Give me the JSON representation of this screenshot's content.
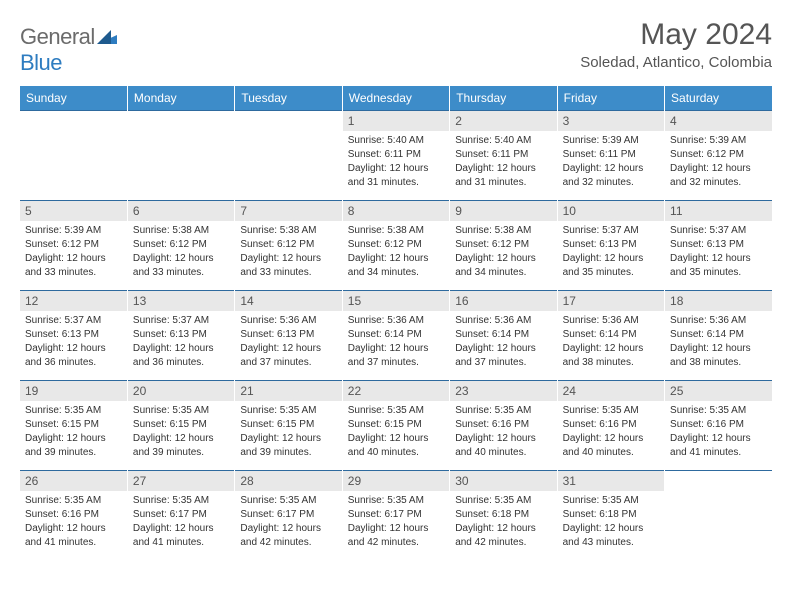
{
  "logo": {
    "gray": "General",
    "blue": "Blue"
  },
  "title": {
    "month": "May 2024",
    "location": "Soledad, Atlantico, Colombia"
  },
  "colors": {
    "header_bg": "#3d8cc9",
    "header_text": "#ffffff",
    "row_border": "#2e6a9e",
    "daynum_bg": "#e8e8e8",
    "text": "#555555",
    "logo_gray": "#6b6b6b",
    "logo_blue": "#2e7cc0"
  },
  "weekdays": [
    "Sunday",
    "Monday",
    "Tuesday",
    "Wednesday",
    "Thursday",
    "Friday",
    "Saturday"
  ],
  "weeks": [
    [
      {
        "n": "",
        "sr": "",
        "ss": "",
        "dl": ""
      },
      {
        "n": "",
        "sr": "",
        "ss": "",
        "dl": ""
      },
      {
        "n": "",
        "sr": "",
        "ss": "",
        "dl": ""
      },
      {
        "n": "1",
        "sr": "5:40 AM",
        "ss": "6:11 PM",
        "dl": "12 hours and 31 minutes."
      },
      {
        "n": "2",
        "sr": "5:40 AM",
        "ss": "6:11 PM",
        "dl": "12 hours and 31 minutes."
      },
      {
        "n": "3",
        "sr": "5:39 AM",
        "ss": "6:11 PM",
        "dl": "12 hours and 32 minutes."
      },
      {
        "n": "4",
        "sr": "5:39 AM",
        "ss": "6:12 PM",
        "dl": "12 hours and 32 minutes."
      }
    ],
    [
      {
        "n": "5",
        "sr": "5:39 AM",
        "ss": "6:12 PM",
        "dl": "12 hours and 33 minutes."
      },
      {
        "n": "6",
        "sr": "5:38 AM",
        "ss": "6:12 PM",
        "dl": "12 hours and 33 minutes."
      },
      {
        "n": "7",
        "sr": "5:38 AM",
        "ss": "6:12 PM",
        "dl": "12 hours and 33 minutes."
      },
      {
        "n": "8",
        "sr": "5:38 AM",
        "ss": "6:12 PM",
        "dl": "12 hours and 34 minutes."
      },
      {
        "n": "9",
        "sr": "5:38 AM",
        "ss": "6:12 PM",
        "dl": "12 hours and 34 minutes."
      },
      {
        "n": "10",
        "sr": "5:37 AM",
        "ss": "6:13 PM",
        "dl": "12 hours and 35 minutes."
      },
      {
        "n": "11",
        "sr": "5:37 AM",
        "ss": "6:13 PM",
        "dl": "12 hours and 35 minutes."
      }
    ],
    [
      {
        "n": "12",
        "sr": "5:37 AM",
        "ss": "6:13 PM",
        "dl": "12 hours and 36 minutes."
      },
      {
        "n": "13",
        "sr": "5:37 AM",
        "ss": "6:13 PM",
        "dl": "12 hours and 36 minutes."
      },
      {
        "n": "14",
        "sr": "5:36 AM",
        "ss": "6:13 PM",
        "dl": "12 hours and 37 minutes."
      },
      {
        "n": "15",
        "sr": "5:36 AM",
        "ss": "6:14 PM",
        "dl": "12 hours and 37 minutes."
      },
      {
        "n": "16",
        "sr": "5:36 AM",
        "ss": "6:14 PM",
        "dl": "12 hours and 37 minutes."
      },
      {
        "n": "17",
        "sr": "5:36 AM",
        "ss": "6:14 PM",
        "dl": "12 hours and 38 minutes."
      },
      {
        "n": "18",
        "sr": "5:36 AM",
        "ss": "6:14 PM",
        "dl": "12 hours and 38 minutes."
      }
    ],
    [
      {
        "n": "19",
        "sr": "5:35 AM",
        "ss": "6:15 PM",
        "dl": "12 hours and 39 minutes."
      },
      {
        "n": "20",
        "sr": "5:35 AM",
        "ss": "6:15 PM",
        "dl": "12 hours and 39 minutes."
      },
      {
        "n": "21",
        "sr": "5:35 AM",
        "ss": "6:15 PM",
        "dl": "12 hours and 39 minutes."
      },
      {
        "n": "22",
        "sr": "5:35 AM",
        "ss": "6:15 PM",
        "dl": "12 hours and 40 minutes."
      },
      {
        "n": "23",
        "sr": "5:35 AM",
        "ss": "6:16 PM",
        "dl": "12 hours and 40 minutes."
      },
      {
        "n": "24",
        "sr": "5:35 AM",
        "ss": "6:16 PM",
        "dl": "12 hours and 40 minutes."
      },
      {
        "n": "25",
        "sr": "5:35 AM",
        "ss": "6:16 PM",
        "dl": "12 hours and 41 minutes."
      }
    ],
    [
      {
        "n": "26",
        "sr": "5:35 AM",
        "ss": "6:16 PM",
        "dl": "12 hours and 41 minutes."
      },
      {
        "n": "27",
        "sr": "5:35 AM",
        "ss": "6:17 PM",
        "dl": "12 hours and 41 minutes."
      },
      {
        "n": "28",
        "sr": "5:35 AM",
        "ss": "6:17 PM",
        "dl": "12 hours and 42 minutes."
      },
      {
        "n": "29",
        "sr": "5:35 AM",
        "ss": "6:17 PM",
        "dl": "12 hours and 42 minutes."
      },
      {
        "n": "30",
        "sr": "5:35 AM",
        "ss": "6:18 PM",
        "dl": "12 hours and 42 minutes."
      },
      {
        "n": "31",
        "sr": "5:35 AM",
        "ss": "6:18 PM",
        "dl": "12 hours and 43 minutes."
      },
      {
        "n": "",
        "sr": "",
        "ss": "",
        "dl": ""
      }
    ]
  ],
  "labels": {
    "sunrise": "Sunrise:",
    "sunset": "Sunset:",
    "daylight": "Daylight:"
  }
}
